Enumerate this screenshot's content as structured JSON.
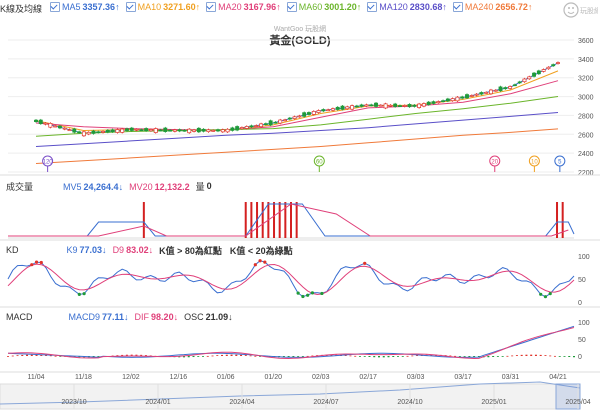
{
  "app": {
    "watermark": "WantGoo 玩股網",
    "logo_text": "玩股網"
  },
  "price_panel": {
    "legend_title": "K線及均線",
    "indicators": [
      {
        "name": "MA5",
        "value": "3357.36↑",
        "color": "#3a6fd0",
        "checked": true
      },
      {
        "name": "MA10",
        "value": "3271.60↑",
        "color": "#f0a020",
        "checked": true
      },
      {
        "name": "MA20",
        "value": "3167.96↑",
        "color": "#e0407a",
        "checked": true
      },
      {
        "name": "MA60",
        "value": "3001.20↑",
        "color": "#6bb52b",
        "checked": true
      },
      {
        "name": "MA120",
        "value": "2830.68↑",
        "color": "#5a4fc8",
        "checked": true
      },
      {
        "name": "MA240",
        "value": "2656.72↑",
        "color": "#f07a3a",
        "checked": true
      }
    ],
    "title": "黃金(GOLD)",
    "y_ticks": [
      "3600",
      "3400",
      "3200",
      "3000",
      "2800",
      "2600",
      "2400",
      "2200"
    ],
    "event_markers": [
      "120",
      "60",
      "20",
      "10",
      "5"
    ]
  },
  "volume_panel": {
    "title": "成交量",
    "indicators": [
      {
        "name": "MV5",
        "value": "24,264.4↓",
        "color": "#3a6fd0"
      },
      {
        "name": "MV20",
        "value": "12,132.2",
        "color": "#e0407a"
      },
      {
        "name": "量",
        "value": "0",
        "color": "#333"
      }
    ]
  },
  "kd_panel": {
    "title": "KD",
    "indicators": [
      {
        "name": "K9",
        "value": "77.03↓",
        "color": "#3a6fd0"
      },
      {
        "name": "D9",
        "value": "83.02↓",
        "color": "#e0407a"
      }
    ],
    "notes": [
      "K值 > 80為紅點",
      "K值 < 20為綠點"
    ],
    "y_ticks": [
      "100",
      "50",
      "0"
    ]
  },
  "macd_panel": {
    "title": "MACD",
    "indicators": [
      {
        "name": "MACD9",
        "value": "77.11↓",
        "color": "#3a6fd0"
      },
      {
        "name": "DIF",
        "value": "98.20↓",
        "color": "#e0407a"
      },
      {
        "name": "OSC",
        "value": "21.09↓",
        "color": "#333"
      }
    ],
    "y_ticks": [
      "100",
      "50",
      "0"
    ]
  },
  "x_axis": {
    "ticks": [
      "11/04",
      "11/18",
      "12/02",
      "12/16",
      "01/06",
      "01/20",
      "02/03",
      "02/17",
      "03/03",
      "03/17",
      "03/31",
      "04/21"
    ]
  },
  "navigator": {
    "ticks": [
      "2023/10",
      "2024/01",
      "2024/04",
      "2024/07",
      "2024/10",
      "2025/01",
      "2025/04"
    ]
  },
  "chart_data": {
    "type": "line",
    "title": "黃金(GOLD)",
    "x": [
      "11/04",
      "11/18",
      "12/02",
      "12/16",
      "01/06",
      "01/20",
      "02/03",
      "02/17",
      "03/03",
      "03/17",
      "03/31",
      "04/21"
    ],
    "ylim": [
      2200,
      3600
    ],
    "series": [
      {
        "name": "MA5",
        "values": [
          2740,
          2610,
          2650,
          2640,
          2640,
          2720,
          2850,
          2910,
          2900,
          2990,
          3100,
          3357
        ]
      },
      {
        "name": "MA10",
        "values": [
          2745,
          2640,
          2650,
          2645,
          2640,
          2700,
          2820,
          2900,
          2910,
          2970,
          3070,
          3272
        ]
      },
      {
        "name": "MA20",
        "values": [
          2720,
          2680,
          2660,
          2650,
          2645,
          2680,
          2780,
          2880,
          2900,
          2940,
          3030,
          3168
        ]
      },
      {
        "name": "MA60",
        "values": [
          2580,
          2610,
          2630,
          2640,
          2650,
          2660,
          2700,
          2760,
          2820,
          2870,
          2930,
          3001
        ]
      },
      {
        "name": "MA120",
        "values": [
          2470,
          2500,
          2530,
          2560,
          2590,
          2610,
          2640,
          2670,
          2710,
          2750,
          2790,
          2831
        ]
      },
      {
        "name": "MA240",
        "values": [
          2290,
          2320,
          2350,
          2380,
          2410,
          2440,
          2470,
          2510,
          2550,
          2590,
          2620,
          2657
        ]
      }
    ]
  }
}
